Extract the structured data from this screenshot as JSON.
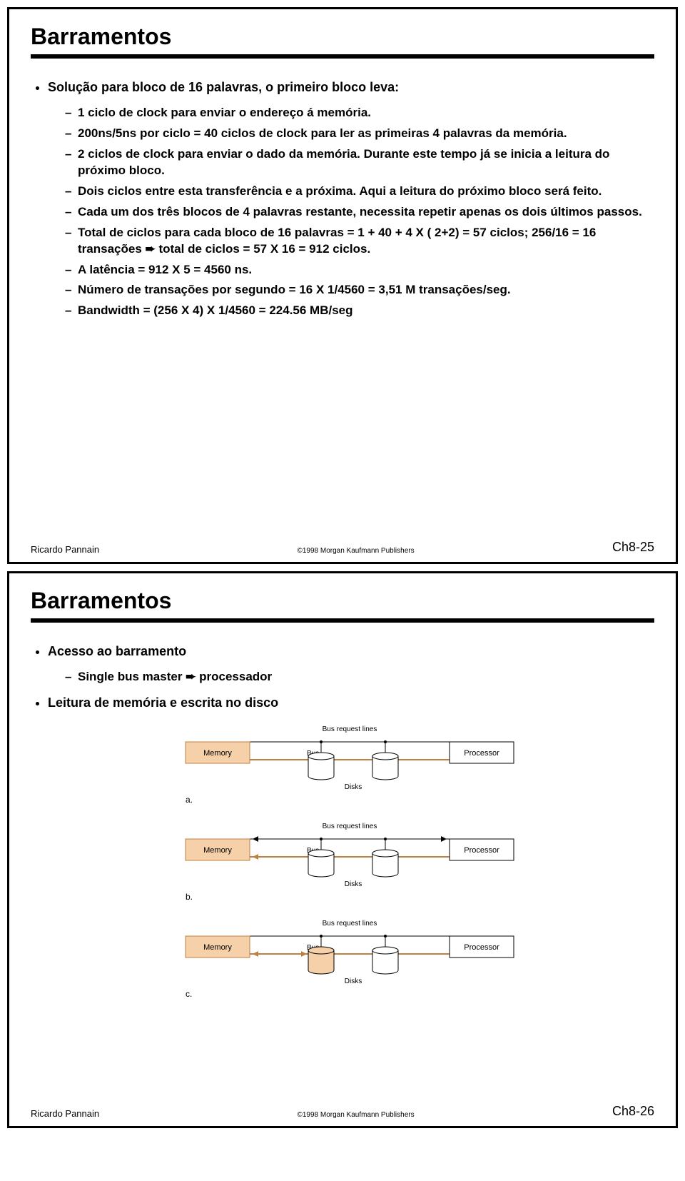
{
  "slide1": {
    "title": "Barramentos",
    "bullet": "Solução para bloco de 16 palavras, o primeiro bloco leva:",
    "items": [
      "1 ciclo de clock  para enviar o endereço á memória.",
      "200ns/5ns por ciclo = 40 ciclos de clock para ler as primeiras 4 palavras da memória.",
      "2 ciclos de clock para enviar o dado da memória. Durante este tempo já se inicia a leitura do próximo bloco.",
      "Dois ciclos entre esta transferência e a próxima. Aqui a leitura do próximo bloco será feito.",
      "Cada um dos três blocos de 4 palavras restante, necessita repetir apenas os dois últimos passos.",
      "Total de ciclos para cada bloco de 16 palavras = 1 + 40 + 4 X ( 2+2) = 57 ciclos;  256/16 = 16 transações ➨ total de ciclos = 57 X 16 = 912 ciclos.",
      "A latência = 912 X 5 = 4560 ns.",
      "Número de transações por segundo = 16 X 1/4560 = 3,51 M transações/seg.",
      "Bandwidth = (256 X 4) X 1/4560 = 224.56 MB/seg"
    ],
    "footer_left": "Ricardo Pannain",
    "footer_center": "©1998 Morgan Kaufmann Publishers",
    "footer_right": "Ch8-25"
  },
  "slide2": {
    "title": "Barramentos",
    "bullet1": "Acesso ao barramento",
    "sub1": "Single bus master ➨ processador",
    "bullet2": "Leitura de memória e escrita no disco",
    "diagram": {
      "memory_label": "Memory",
      "processor_label": "Processor",
      "bus_label": "Bus",
      "req_label": "Bus request lines",
      "disks_label": "Disks",
      "labels": [
        "a.",
        "b.",
        "c."
      ],
      "colors": {
        "memory_fill": "#f5d0a9",
        "memory_stroke": "#c08040",
        "processor_fill": "#ffffff",
        "processor_stroke": "#000000",
        "bus_color": "#c08040",
        "req_color": "#000000",
        "disk_stroke": "#000000",
        "disk_fill_pale": "#ffffff",
        "disk_fill_active": "#f5d0a9",
        "text_color": "#000000"
      },
      "rows": [
        {
          "memory_highlight": true,
          "disks_active": [
            false,
            false
          ],
          "arrows": "none"
        },
        {
          "memory_highlight": true,
          "disks_active": [
            false,
            false
          ],
          "arrows": "proc_to_mem"
        },
        {
          "memory_highlight": true,
          "disks_active": [
            true,
            false
          ],
          "arrows": "mem_to_disk"
        }
      ]
    },
    "footer_left": "Ricardo Pannain",
    "footer_center": "©1998 Morgan Kaufmann Publishers",
    "footer_right": "Ch8-26"
  }
}
